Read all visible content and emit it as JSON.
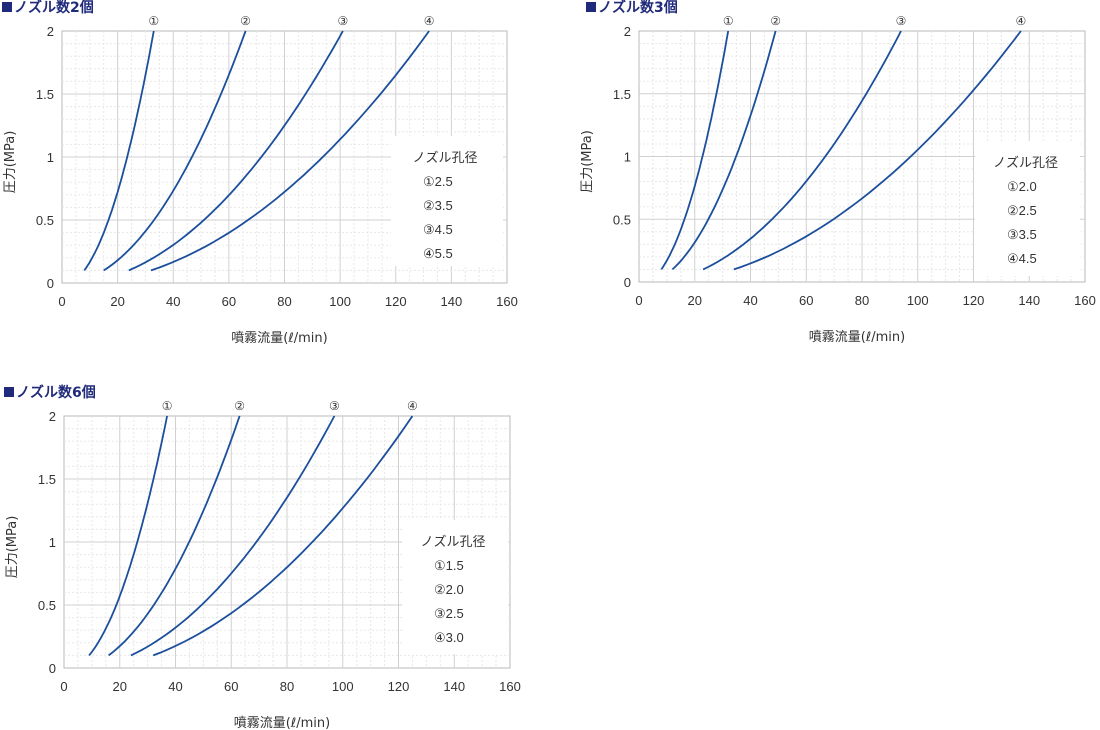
{
  "charts": [
    {
      "title": "ノズル数2個",
      "ylabel": "圧力(MPa)",
      "xlabel": "噴霧流量(ℓ/min)",
      "xticks": [
        "0",
        "20",
        "40",
        "60",
        "80",
        "100",
        "120",
        "140",
        "160"
      ],
      "yticks": [
        "0",
        "0.5",
        "1",
        "1.5",
        "2"
      ],
      "legend_title": "ノズル孔径",
      "legend_items": [
        "①2.5",
        "②3.5",
        "③4.5",
        "④5.5"
      ],
      "curve_labels": [
        "①",
        "②",
        "③",
        "④"
      ]
    },
    {
      "title": "ノズル数3個",
      "ylabel": "圧力(MPa)",
      "xlabel": "噴霧流量(ℓ/min)",
      "xticks": [
        "0",
        "20",
        "40",
        "60",
        "80",
        "100",
        "120",
        "140",
        "160"
      ],
      "yticks": [
        "0",
        "0.5",
        "1",
        "1.5",
        "2"
      ],
      "legend_title": "ノズル孔径",
      "legend_items": [
        "①2.0",
        "②2.5",
        "③3.5",
        "④4.5"
      ],
      "curve_labels": [
        "①",
        "②",
        "③",
        "④"
      ]
    },
    {
      "title": "ノズル数6個",
      "ylabel": "圧力(MPa)",
      "xlabel": "噴霧流量(ℓ/min)",
      "xticks": [
        "0",
        "20",
        "40",
        "60",
        "80",
        "100",
        "120",
        "140",
        "160"
      ],
      "yticks": [
        "0",
        "0.5",
        "1",
        "1.5",
        "2"
      ],
      "legend_title": "ノズル孔径",
      "legend_items": [
        "①1.5",
        "②2.0",
        "③2.5",
        "④3.0"
      ],
      "curve_labels": [
        "①",
        "②",
        "③",
        "④"
      ]
    }
  ],
  "chart_data": [
    {
      "type": "line",
      "title": "ノズル数2個",
      "xlabel": "噴霧流量(ℓ/min)",
      "ylabel": "圧力(MPa)",
      "xlim": [
        0,
        160
      ],
      "ylim": [
        0,
        2
      ],
      "grid": true,
      "legend_position": "right",
      "line_color": "#1b4f9c",
      "series": [
        {
          "name": "①2.5",
          "x": [
            8,
            33
          ],
          "y": [
            0.1,
            2.0
          ]
        },
        {
          "name": "②3.5",
          "x": [
            15,
            66
          ],
          "y": [
            0.1,
            2.0
          ]
        },
        {
          "name": "③4.5",
          "x": [
            24,
            101
          ],
          "y": [
            0.1,
            2.0
          ]
        },
        {
          "name": "④5.5",
          "x": [
            32,
            132
          ],
          "y": [
            0.1,
            2.0
          ]
        }
      ]
    },
    {
      "type": "line",
      "title": "ノズル数3個",
      "xlabel": "噴霧流量(ℓ/min)",
      "ylabel": "圧力(MPa)",
      "xlim": [
        0,
        160
      ],
      "ylim": [
        0,
        2
      ],
      "grid": true,
      "legend_position": "right",
      "line_color": "#1b4f9c",
      "series": [
        {
          "name": "①2.0",
          "x": [
            8,
            32
          ],
          "y": [
            0.1,
            2.0
          ]
        },
        {
          "name": "②2.5",
          "x": [
            12,
            49
          ],
          "y": [
            0.1,
            2.0
          ]
        },
        {
          "name": "③3.5",
          "x": [
            23,
            94
          ],
          "y": [
            0.1,
            2.0
          ]
        },
        {
          "name": "④4.5",
          "x": [
            34,
            137
          ],
          "y": [
            0.1,
            2.0
          ]
        }
      ]
    },
    {
      "type": "line",
      "title": "ノズル数6個",
      "xlabel": "噴霧流量(ℓ/min)",
      "ylabel": "圧力(MPa)",
      "xlim": [
        0,
        160
      ],
      "ylim": [
        0,
        2
      ],
      "grid": true,
      "legend_position": "right",
      "line_color": "#1b4f9c",
      "series": [
        {
          "name": "①1.5",
          "x": [
            9,
            37
          ],
          "y": [
            0.1,
            2.0
          ]
        },
        {
          "name": "②2.0",
          "x": [
            16,
            63
          ],
          "y": [
            0.1,
            2.0
          ]
        },
        {
          "name": "③2.5",
          "x": [
            24,
            97
          ],
          "y": [
            0.1,
            2.0
          ]
        },
        {
          "name": "④3.0",
          "x": [
            32,
            125
          ],
          "y": [
            0.1,
            2.0
          ]
        }
      ]
    }
  ]
}
